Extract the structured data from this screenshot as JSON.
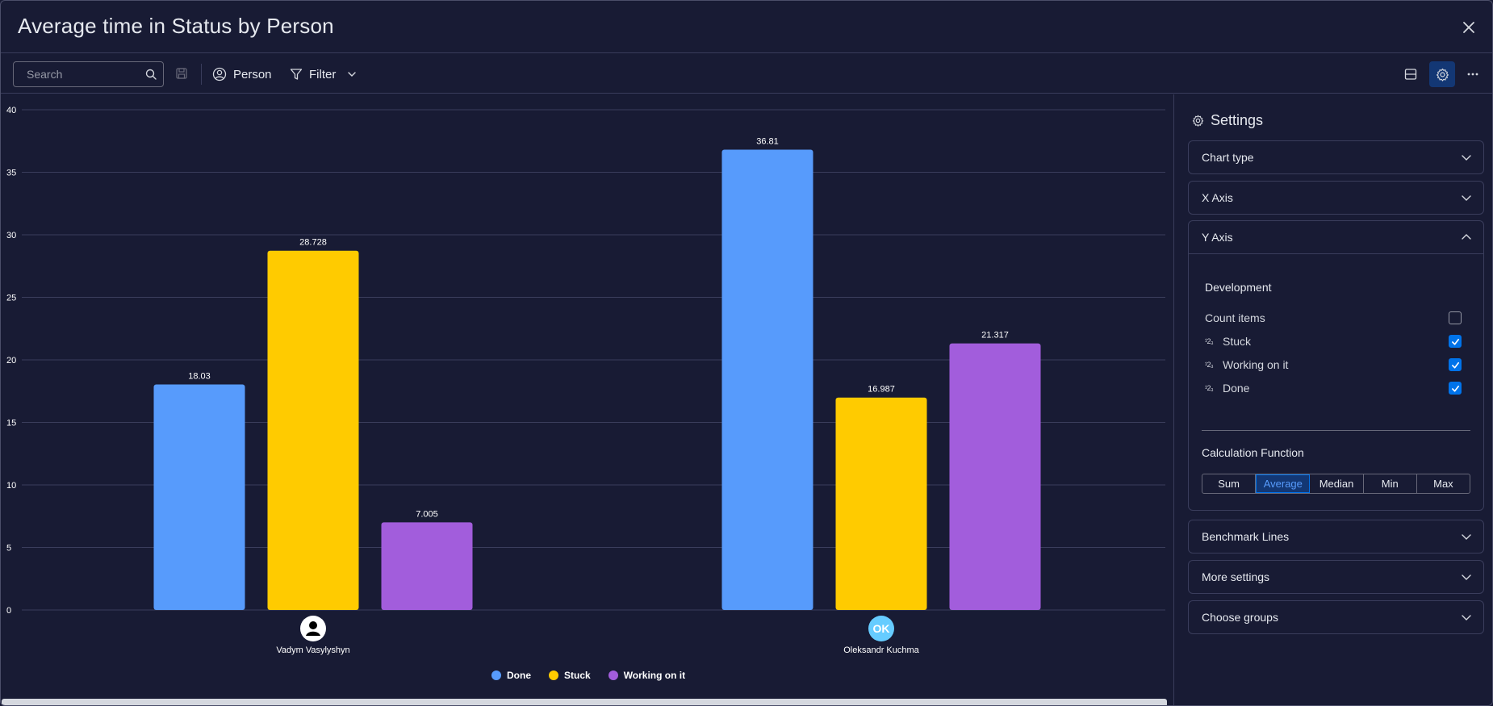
{
  "header": {
    "title": "Average time in Status by Person"
  },
  "toolbar": {
    "search_placeholder": "Search",
    "person_label": "Person",
    "filter_label": "Filter"
  },
  "chart_data": {
    "type": "bar",
    "categories": [
      "Vadym Vasylyshyn",
      "Oleksandr Kuchma"
    ],
    "series": [
      {
        "name": "Done",
        "color": "#579bfc",
        "values": [
          18.03,
          36.81
        ]
      },
      {
        "name": "Stuck",
        "color": "#ffcb00",
        "values": [
          28.728,
          16.987
        ]
      },
      {
        "name": "Working on it",
        "color": "#a25ddc",
        "values": [
          7.005,
          21.317
        ]
      }
    ],
    "ylim": [
      0,
      40
    ],
    "yticks": [
      0,
      5,
      10,
      15,
      20,
      25,
      30,
      35,
      40
    ],
    "grid": true,
    "legend": "bottom",
    "avatars": [
      "",
      "OK"
    ]
  },
  "settings": {
    "title": "Settings",
    "sections": {
      "chart_type": "Chart type",
      "x_axis": "X Axis",
      "y_axis": "Y Axis",
      "benchmark": "Benchmark Lines",
      "more": "More settings",
      "groups": "Choose groups"
    },
    "y_axis": {
      "group_title": "Development",
      "items": [
        {
          "label": "Count items",
          "numeric": false,
          "checked": false
        },
        {
          "label": "Stuck",
          "numeric": true,
          "checked": true
        },
        {
          "label": "Working on it",
          "numeric": true,
          "checked": true
        },
        {
          "label": "Done",
          "numeric": true,
          "checked": true
        }
      ],
      "numeric_icon": "¹2₃",
      "calc_title": "Calculation Function",
      "calc_options": [
        "Sum",
        "Average",
        "Median",
        "Min",
        "Max"
      ],
      "calc_selected": "Average"
    }
  },
  "colors": {
    "accent": "#0073ea",
    "background": "#181b34"
  }
}
